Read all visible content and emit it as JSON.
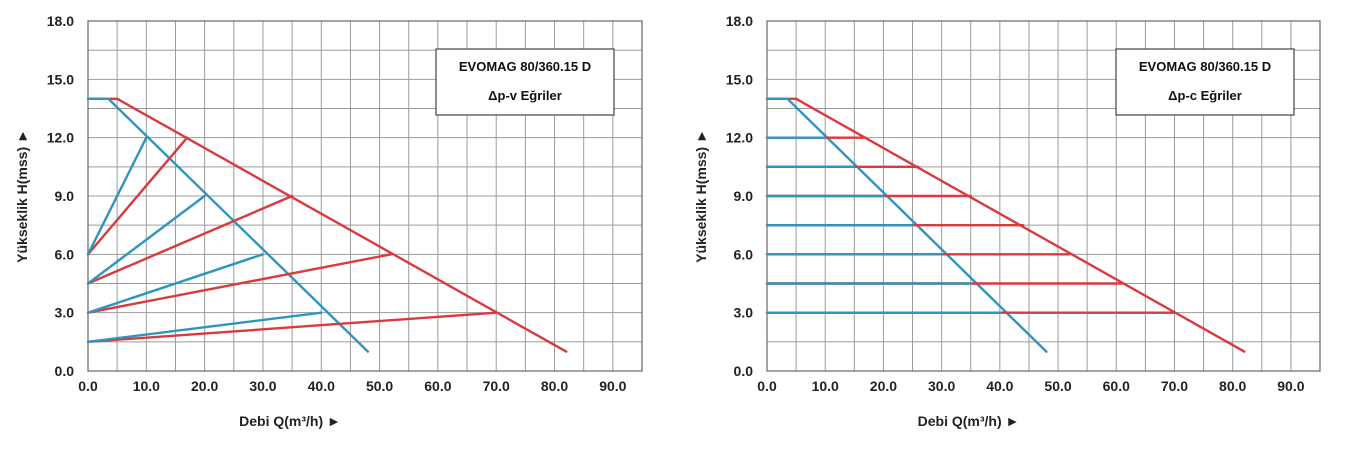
{
  "colors": {
    "red": "#d93a3e",
    "blue": "#2f95be",
    "grid": "#9b9b9b"
  },
  "chart_data": [
    {
      "type": "line",
      "title_line1": "EVOMAG 80/360.15 D",
      "title_line2": "Δp-v Eğriler",
      "xlabel": "Debi Q(m³/h) ►",
      "ylabel": "Yükseklik H(mss) ►",
      "xlim": [
        0,
        95
      ],
      "ylim": [
        0,
        18
      ],
      "xticks": [
        "0.0",
        "10.0",
        "20.0",
        "30.0",
        "40.0",
        "50.0",
        "60.0",
        "70.0",
        "80.0",
        "90.0"
      ],
      "yticks": [
        "0.0",
        "3.0",
        "6.0",
        "9.0",
        "12.0",
        "15.0",
        "18.0"
      ],
      "grid": true,
      "legend_position": "top-right",
      "series": [
        {
          "color": "red",
          "points": [
            [
              0,
              14
            ],
            [
              5,
              14
            ],
            [
              82,
              1
            ]
          ]
        },
        {
          "color": "blue",
          "points": [
            [
              0,
              14
            ],
            [
              3.5,
              14
            ],
            [
              48,
              1
            ]
          ]
        },
        {
          "color": "red",
          "points": [
            [
              0,
              6
            ],
            [
              17,
              12
            ]
          ]
        },
        {
          "color": "red",
          "points": [
            [
              0,
              4.5
            ],
            [
              35,
              9
            ]
          ]
        },
        {
          "color": "red",
          "points": [
            [
              0,
              3
            ],
            [
              52,
              6
            ]
          ]
        },
        {
          "color": "red",
          "points": [
            [
              0,
              1.5
            ],
            [
              70,
              3
            ]
          ]
        },
        {
          "color": "blue",
          "points": [
            [
              0,
              6
            ],
            [
              10,
              12
            ]
          ]
        },
        {
          "color": "blue",
          "points": [
            [
              0,
              4.5
            ],
            [
              20,
              9
            ]
          ]
        },
        {
          "color": "blue",
          "points": [
            [
              0,
              3
            ],
            [
              30,
              6
            ]
          ]
        },
        {
          "color": "blue",
          "points": [
            [
              0,
              1.5
            ],
            [
              40,
              3
            ]
          ]
        }
      ]
    },
    {
      "type": "line",
      "title_line1": "EVOMAG 80/360.15 D",
      "title_line2": "Δp-c Eğriler",
      "xlabel": "Debi Q(m³/h) ►",
      "ylabel": "Yükseklik H(mss) ►",
      "xlim": [
        0,
        95
      ],
      "ylim": [
        0,
        18
      ],
      "xticks": [
        "0.0",
        "10.0",
        "20.0",
        "30.0",
        "40.0",
        "50.0",
        "60.0",
        "70.0",
        "80.0",
        "90.0"
      ],
      "yticks": [
        "0.0",
        "3.0",
        "6.0",
        "9.0",
        "12.0",
        "15.0",
        "18.0"
      ],
      "grid": true,
      "legend_position": "top-right",
      "series": [
        {
          "color": "red",
          "points": [
            [
              0,
              14
            ],
            [
              5,
              14
            ],
            [
              82,
              1
            ]
          ]
        },
        {
          "color": "blue",
          "points": [
            [
              0,
              14
            ],
            [
              3.5,
              14
            ],
            [
              48,
              1
            ]
          ]
        },
        {
          "color": "red",
          "points": [
            [
              0,
              12
            ],
            [
              17,
              12
            ]
          ]
        },
        {
          "color": "red",
          "points": [
            [
              0,
              10.5
            ],
            [
              26,
              10.5
            ]
          ]
        },
        {
          "color": "red",
          "points": [
            [
              0,
              9
            ],
            [
              35,
              9
            ]
          ]
        },
        {
          "color": "red",
          "points": [
            [
              0,
              7.5
            ],
            [
              44,
              7.5
            ]
          ]
        },
        {
          "color": "red",
          "points": [
            [
              0,
              6
            ],
            [
              52,
              6
            ]
          ]
        },
        {
          "color": "red",
          "points": [
            [
              0,
              4.5
            ],
            [
              61,
              4.5
            ]
          ]
        },
        {
          "color": "red",
          "points": [
            [
              0,
              3
            ],
            [
              70,
              3
            ]
          ]
        },
        {
          "color": "blue",
          "points": [
            [
              0,
              12
            ],
            [
              10,
              12
            ]
          ]
        },
        {
          "color": "blue",
          "points": [
            [
              0,
              10.5
            ],
            [
              15,
              10.5
            ]
          ]
        },
        {
          "color": "blue",
          "points": [
            [
              0,
              9
            ],
            [
              20,
              9
            ]
          ]
        },
        {
          "color": "blue",
          "points": [
            [
              0,
              7.5
            ],
            [
              25,
              7.5
            ]
          ]
        },
        {
          "color": "blue",
          "points": [
            [
              0,
              6
            ],
            [
              30,
              6
            ]
          ]
        },
        {
          "color": "blue",
          "points": [
            [
              0,
              4.5
            ],
            [
              35,
              4.5
            ]
          ]
        },
        {
          "color": "blue",
          "points": [
            [
              0,
              3
            ],
            [
              40,
              3
            ]
          ]
        }
      ]
    }
  ]
}
